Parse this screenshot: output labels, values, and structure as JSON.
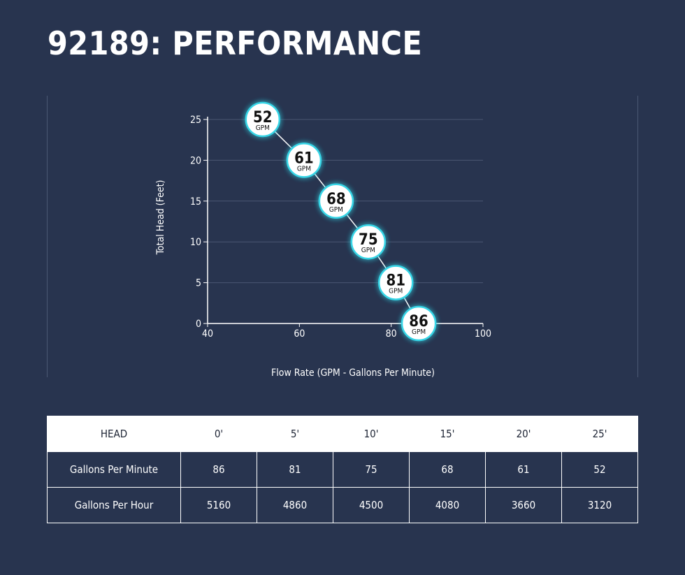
{
  "title": "92189: PERFORMANCE",
  "chart_data": {
    "type": "line",
    "x_values": [
      52,
      61,
      68,
      75,
      81,
      86
    ],
    "y_values": [
      25,
      20,
      15,
      10,
      5,
      0
    ],
    "point_labels": [
      "52",
      "61",
      "68",
      "75",
      "81",
      "86"
    ],
    "point_unit": "GPM",
    "xlabel": "Flow Rate (GPM - Gallons Per Minute)",
    "ylabel": "Total Head (Feet)",
    "xlim": [
      40,
      100
    ],
    "ylim": [
      0,
      25
    ],
    "x_ticks": [
      "40",
      "60",
      "80",
      "100"
    ],
    "y_ticks": [
      "0",
      "5",
      "10",
      "15",
      "20",
      "25"
    ],
    "grid": "horizontal",
    "colors": {
      "background": "#28344f",
      "marker_ring": "#36d5e6",
      "marker_fill": "#ffffff",
      "line": "#ffffff"
    }
  },
  "table": {
    "header_label": "HEAD",
    "head_values": [
      "0'",
      "5'",
      "10'",
      "15'",
      "20'",
      "25'"
    ],
    "rows": [
      {
        "label": "Gallons Per Minute",
        "values": [
          "86",
          "81",
          "75",
          "68",
          "61",
          "52"
        ]
      },
      {
        "label": "Gallons Per Hour",
        "values": [
          "5160",
          "4860",
          "4500",
          "4080",
          "3660",
          "3120"
        ]
      }
    ]
  }
}
